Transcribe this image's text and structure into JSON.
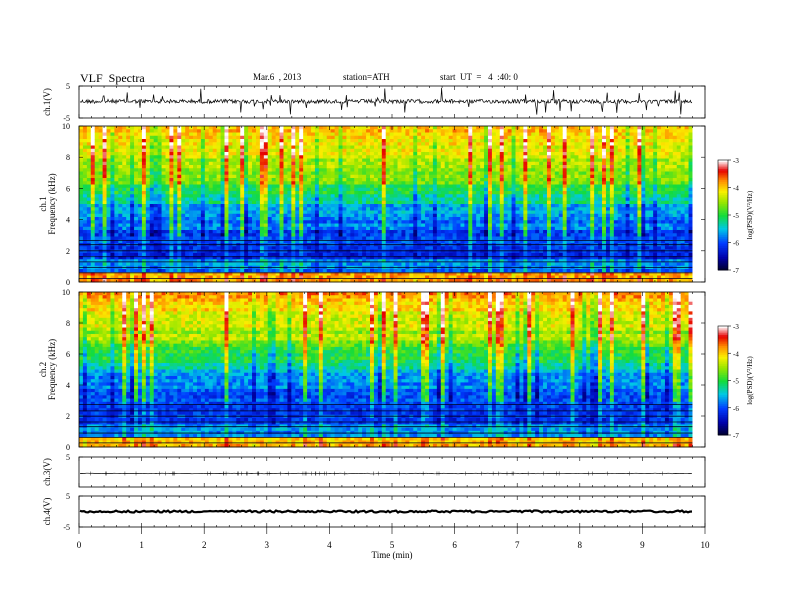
{
  "header": {
    "title": "VLF  Spectra",
    "date": "Mar.6  , 2013",
    "station": "station=ATH",
    "start": "start  UT  =   4  :40: 0"
  },
  "chart_data": [
    {
      "type": "line",
      "panel": "ch1-waveform",
      "ylabel": "ch.1(V)",
      "ylim": [
        -5,
        5
      ],
      "yticks": [
        "5",
        "-5"
      ],
      "xlim": [
        0,
        10
      ],
      "baseline": 0.2
    },
    {
      "type": "heatmap",
      "panel": "ch1-spectrogram",
      "ylabel": "ch.1\nFrequency  (kHz)",
      "ylim": [
        0,
        10
      ],
      "yticks": [
        "0",
        "2",
        "4",
        "6",
        "8",
        "10"
      ],
      "xlim": [
        0,
        10
      ],
      "colorbar": {
        "label": "log(PSD)(V²/Hz)",
        "range": [
          -7,
          -3
        ],
        "ticks": [
          "-3",
          "-4",
          "-5",
          "-6",
          "-7"
        ]
      }
    },
    {
      "type": "heatmap",
      "panel": "ch2-spectrogram",
      "ylabel": "ch.2\nFrequency  (kHz)",
      "ylim": [
        0,
        10
      ],
      "yticks": [
        "0",
        "2",
        "4",
        "6",
        "8",
        "10"
      ],
      "xlim": [
        0,
        10
      ],
      "colorbar": {
        "label": "log(PSD)(V²/Hz)",
        "range": [
          -7,
          -3
        ],
        "ticks": [
          "-3",
          "-4",
          "-5",
          "-6",
          "-7"
        ]
      }
    },
    {
      "type": "line",
      "panel": "ch3-waveform",
      "ylabel": "ch.3(V)",
      "ylim": [
        -5,
        5
      ],
      "yticks": [
        "5"
      ],
      "xlim": [
        0,
        10
      ],
      "baseline": -0.5
    },
    {
      "type": "line",
      "panel": "ch4-waveform",
      "ylabel": "ch.4(V)",
      "ylim": [
        -5,
        5
      ],
      "yticks": [
        "5",
        "-5"
      ],
      "xlim": [
        0,
        10
      ],
      "baseline": 0
    }
  ],
  "xaxis": {
    "label": "Time  (min)",
    "ticks": [
      "0",
      "1",
      "2",
      "3",
      "4",
      "5",
      "6",
      "7",
      "8",
      "9",
      "10"
    ],
    "data_end_min": 9.8
  }
}
